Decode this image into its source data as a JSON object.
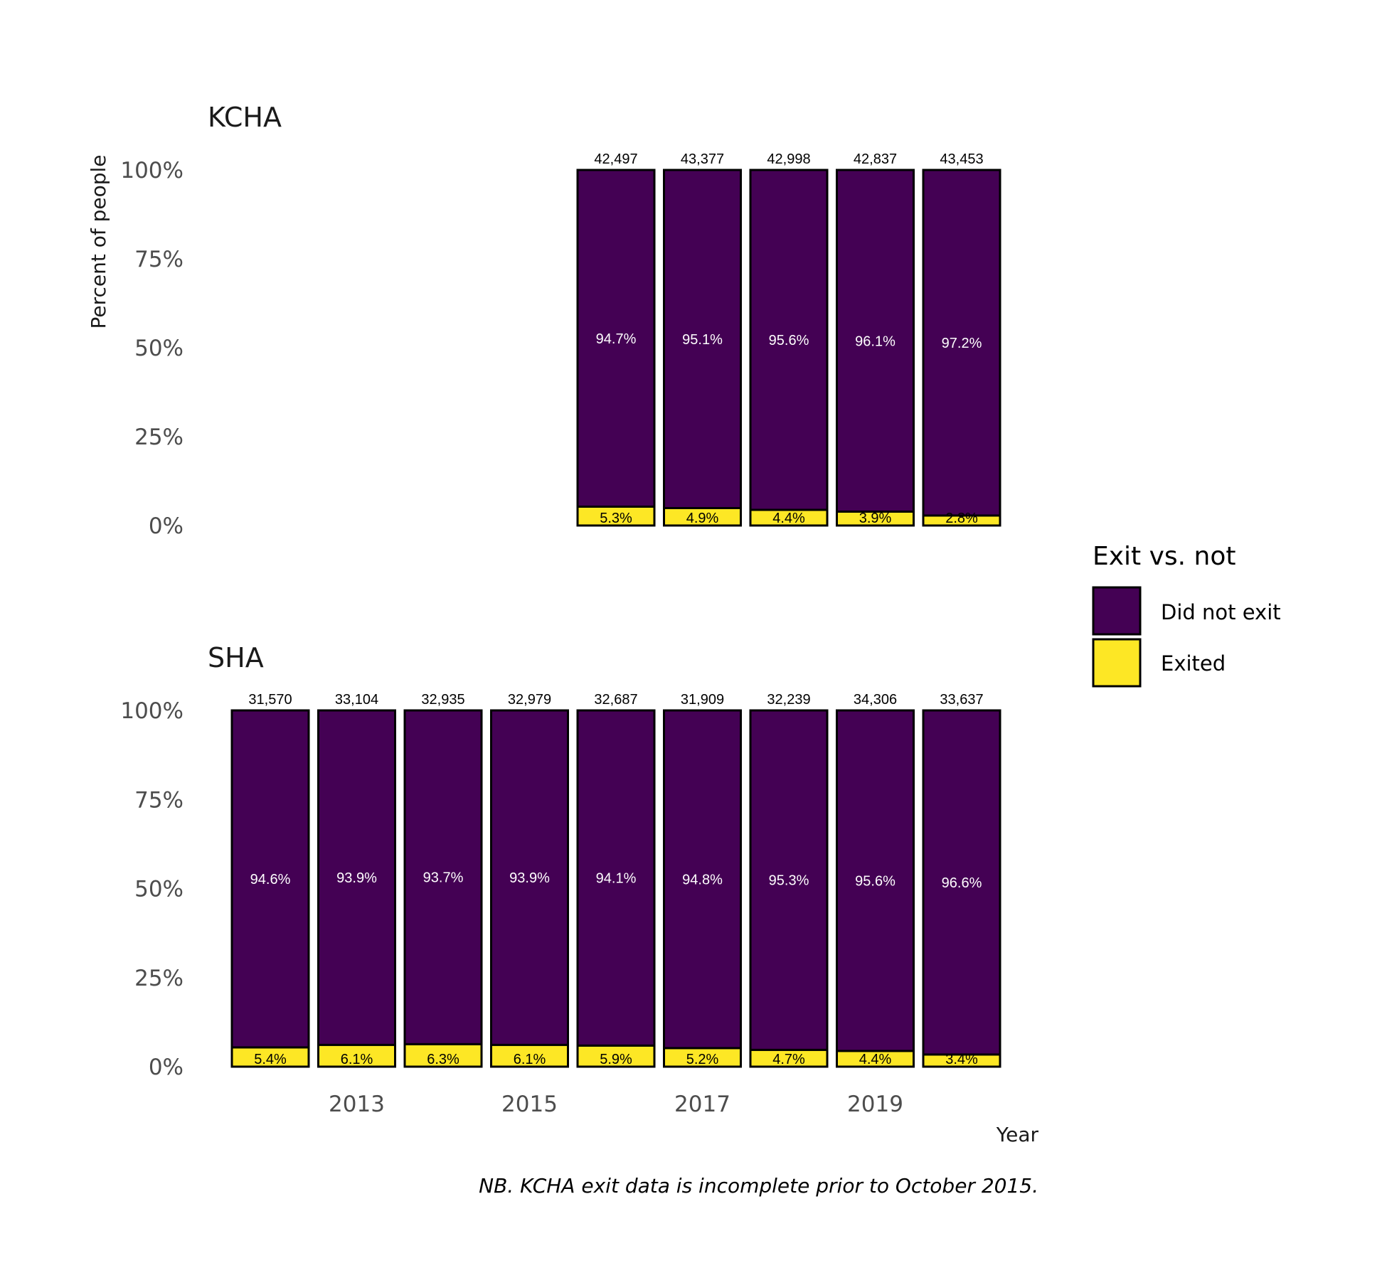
{
  "chart_data": [
    {
      "type": "bar",
      "title": "KCHA",
      "ylabel": "Percent of people",
      "ylim": [
        0,
        100
      ],
      "yticks": [
        "0%",
        "25%",
        "50%",
        "75%",
        "100%"
      ],
      "categories": [
        "2016",
        "2017",
        "2018",
        "2019",
        "2020"
      ],
      "totals": [
        "42,497",
        "43,377",
        "42,998",
        "42,837",
        "43,453"
      ],
      "series": [
        {
          "name": "Did not exit",
          "values": [
            94.7,
            95.1,
            95.6,
            96.1,
            97.2
          ],
          "labels": [
            "94.7%",
            "95.1%",
            "95.6%",
            "96.1%",
            "97.2%"
          ],
          "color": "#440154"
        },
        {
          "name": "Exited",
          "values": [
            5.3,
            4.9,
            4.4,
            3.9,
            2.8
          ],
          "labels": [
            "5.3%",
            "4.9%",
            "4.4%",
            "3.9%",
            "2.8%"
          ],
          "color": "#FDE725"
        }
      ]
    },
    {
      "type": "bar",
      "title": "SHA",
      "xlabel": "Year",
      "ylim": [
        0,
        100
      ],
      "yticks": [
        "0%",
        "25%",
        "50%",
        "75%",
        "100%"
      ],
      "xticks": [
        "2013",
        "2015",
        "2017",
        "2019"
      ],
      "categories": [
        "2012",
        "2013",
        "2014",
        "2015",
        "2016",
        "2017",
        "2018",
        "2019",
        "2020"
      ],
      "totals": [
        "31,570",
        "33,104",
        "32,935",
        "32,979",
        "32,687",
        "31,909",
        "32,239",
        "34,306",
        "33,637"
      ],
      "series": [
        {
          "name": "Did not exit",
          "values": [
            94.6,
            93.9,
            93.7,
            93.9,
            94.1,
            94.8,
            95.3,
            95.6,
            96.6
          ],
          "labels": [
            "94.6%",
            "93.9%",
            "93.7%",
            "93.9%",
            "94.1%",
            "94.8%",
            "95.3%",
            "95.6%",
            "96.6%"
          ],
          "color": "#440154"
        },
        {
          "name": "Exited",
          "values": [
            5.4,
            6.1,
            6.3,
            6.1,
            5.9,
            5.2,
            4.7,
            4.4,
            3.4
          ],
          "labels": [
            "5.4%",
            "6.1%",
            "6.3%",
            "6.1%",
            "5.9%",
            "5.2%",
            "4.7%",
            "4.4%",
            "3.4%"
          ],
          "color": "#FDE725"
        }
      ]
    }
  ],
  "legend": {
    "title": "Exit vs. not",
    "items": [
      {
        "label": "Did not exit",
        "color": "#440154"
      },
      {
        "label": "Exited",
        "color": "#FDE725"
      }
    ]
  },
  "caption": "NB. KCHA exit data is incomplete prior to October 2015."
}
